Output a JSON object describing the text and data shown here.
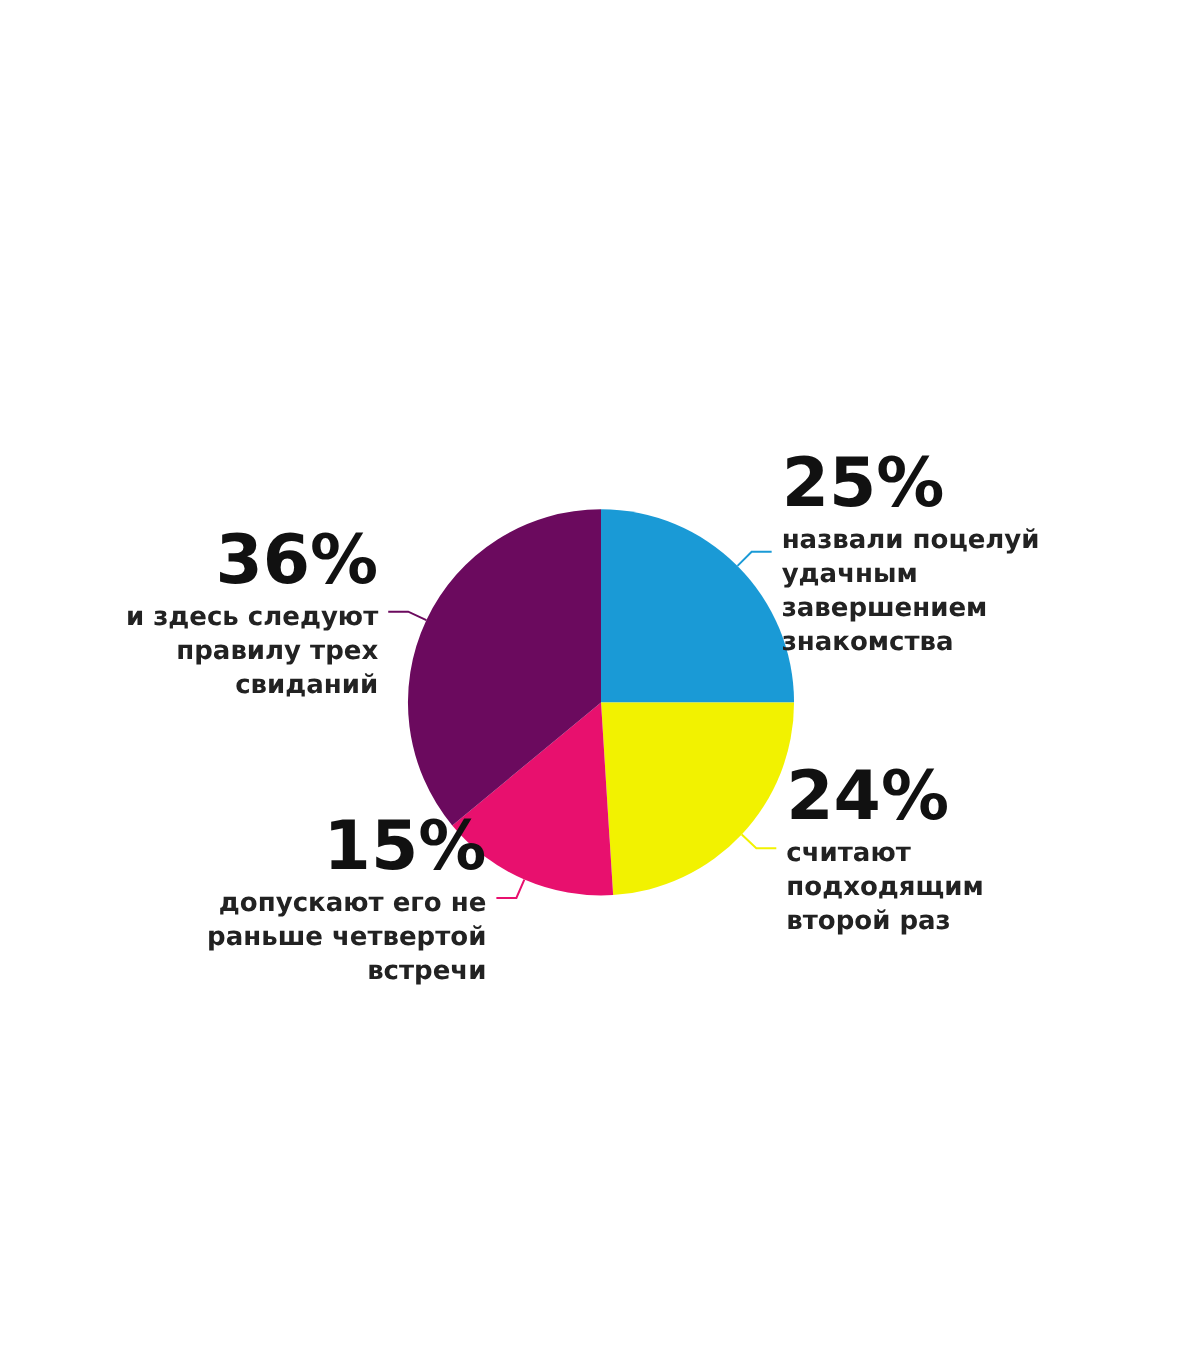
{
  "chart_data": {
    "type": "pie",
    "categories": [
      "назвали поцелуй удачным завершением знакомства",
      "считают подходящим второй раз",
      "допускают его не раньше четвертой встречи",
      "и здесь следуют правилу трех свиданий"
    ],
    "values": [
      25,
      24,
      15,
      36
    ],
    "colors": [
      "#1a9ad6",
      "#f2f200",
      "#e8106e",
      "#6b0a5e"
    ],
    "value_labels": [
      "25%",
      "24%",
      "15%",
      "36%"
    ],
    "legend": false
  }
}
